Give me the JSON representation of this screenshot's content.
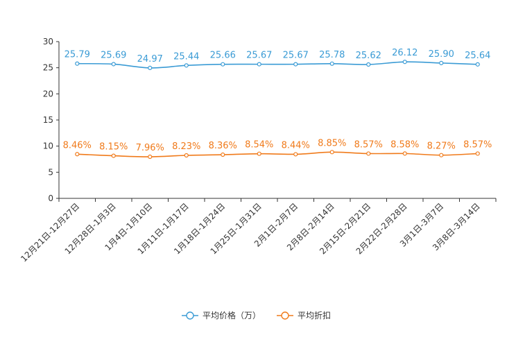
{
  "chart_data": {
    "type": "line",
    "title": "",
    "xlabel": "",
    "ylabel": "",
    "ylim": [
      0,
      30
    ],
    "yticks": [
      0,
      5,
      10,
      15,
      20,
      25,
      30
    ],
    "grid": false,
    "legend_position": "bottom-center",
    "categories": [
      "12月21日-12月27日",
      "12月28日-1月3日",
      "1月4日-1月10日",
      "1月11日-1月17日",
      "1月18日-1月24日",
      "1月25日-1月31日",
      "2月1日-2月7日",
      "2月8日-2月14日",
      "2月15日-2月21日",
      "2月22日-2月28日",
      "3月1日-3月7日",
      "3月8日-3月14日"
    ],
    "series": [
      {
        "name": "平均价格（万）",
        "color": "#3a9bd5",
        "values": [
          25.79,
          25.69,
          24.97,
          25.44,
          25.66,
          25.67,
          25.67,
          25.78,
          25.62,
          26.12,
          25.9,
          25.64
        ],
        "labels": [
          "25.79",
          "25.69",
          "24.97",
          "25.44",
          "25.66",
          "25.67",
          "25.67",
          "25.78",
          "25.62",
          "26.12",
          "25.90",
          "25.64"
        ]
      },
      {
        "name": "平均折扣",
        "color": "#f07a1a",
        "values": [
          8.46,
          8.15,
          7.96,
          8.23,
          8.36,
          8.54,
          8.44,
          8.85,
          8.57,
          8.58,
          8.27,
          8.57
        ],
        "labels": [
          "8.46%",
          "8.15%",
          "7.96%",
          "8.23%",
          "8.36%",
          "8.54%",
          "8.44%",
          "8.85%",
          "8.57%",
          "8.58%",
          "8.27%",
          "8.57%"
        ]
      }
    ]
  }
}
